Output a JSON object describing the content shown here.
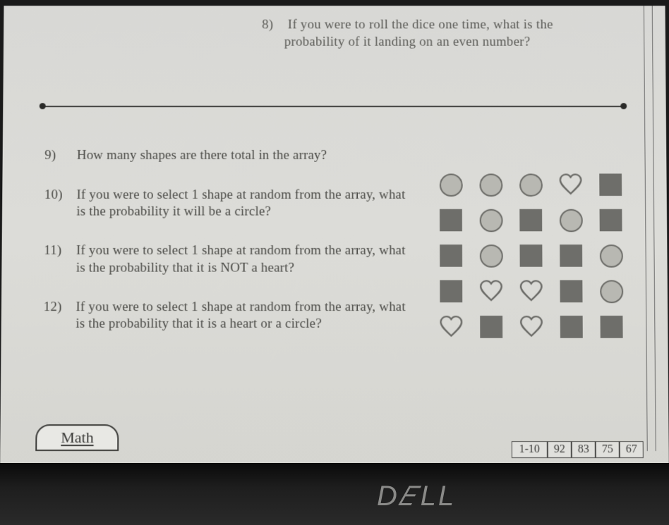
{
  "question8": {
    "number": "8)",
    "text_line1": "If you were to roll the dice one time, what is the",
    "text_line2": "probability of it landing on an even number?"
  },
  "questions": [
    {
      "number": "9)",
      "text": "How many shapes are there total in the array?"
    },
    {
      "number": "10)",
      "text": "If you were to select 1 shape at random from the array, what is the probability it will be a circle?"
    },
    {
      "number": "11)",
      "text": "If you were to select 1 shape at random from the array, what is the probability that it is NOT a heart?"
    },
    {
      "number": "12)",
      "text": "If you were to select 1 shape at random from the array, what is the probability that it is a heart or a circle?"
    }
  ],
  "shape_array": {
    "rows": [
      [
        "circle",
        "circle",
        "circle",
        "heart",
        "square"
      ],
      [
        "square",
        "circle",
        "square",
        "circle",
        "square"
      ],
      [
        "square",
        "circle",
        "square",
        "square",
        "circle"
      ],
      [
        "square",
        "heart",
        "heart",
        "square",
        "circle"
      ],
      [
        "heart",
        "square",
        "heart",
        "square",
        "square"
      ]
    ],
    "colors": {
      "circle_fill": "#b8b8b2",
      "circle_stroke": "#6a6a66",
      "square_fill": "#6e6e6a",
      "heart_stroke": "#6a6a66"
    }
  },
  "footer": {
    "tab_label": "Math",
    "score_range": "1-10",
    "scores": [
      "92",
      "83",
      "75",
      "67"
    ]
  },
  "brand": {
    "logo": "DELL"
  }
}
